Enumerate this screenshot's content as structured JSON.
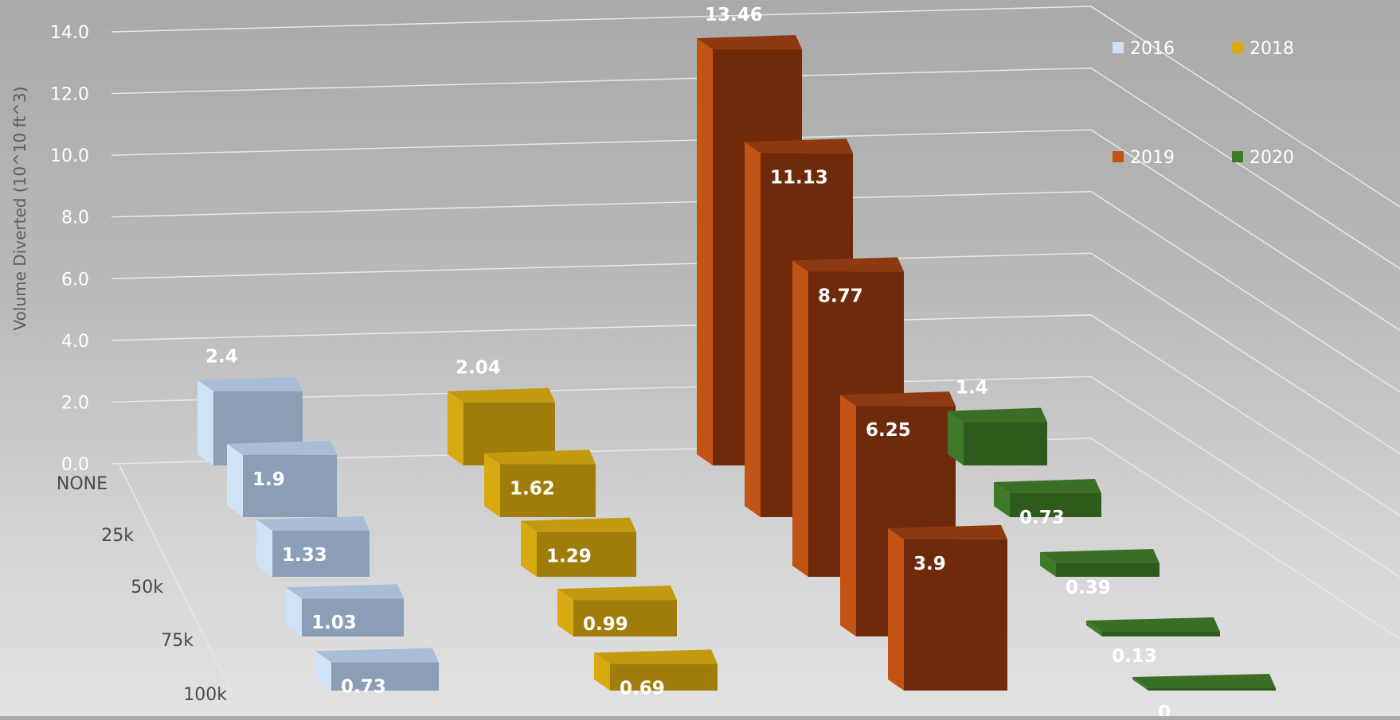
{
  "chart_data": {
    "type": "bar",
    "view": "3d",
    "ylabel": "Volume Diverted (10^10 ft^3)",
    "ylim": [
      0,
      14
    ],
    "yticks": [
      "0.0",
      "2.0",
      "4.0",
      "6.0",
      "8.0",
      "10.0",
      "12.0",
      "14.0"
    ],
    "categories": [
      "NONE",
      "25k",
      "50k",
      "75k",
      "100k"
    ],
    "legend_position": "top-right",
    "grid": true,
    "series": [
      {
        "name": "2016",
        "values": [
          2.4,
          1.9,
          1.33,
          1.03,
          0.73
        ],
        "labels": [
          "2.4",
          "1.9",
          "1.33",
          "1.03",
          "0.73"
        ]
      },
      {
        "name": "2018",
        "values": [
          2.04,
          1.62,
          1.29,
          0.99,
          0.69
        ],
        "labels": [
          "2.04",
          "1.62",
          "1.29",
          "0.99",
          "0.69"
        ]
      },
      {
        "name": "2019",
        "values": [
          13.46,
          11.13,
          8.77,
          6.25,
          3.9
        ],
        "labels": [
          "13.46",
          "11.13",
          "8.77",
          "6.25",
          "3.9"
        ]
      },
      {
        "name": "2020",
        "values": [
          1.4,
          0.73,
          0.39,
          0.13,
          0
        ],
        "labels": [
          "1.4",
          "0.73",
          "0.39",
          "0.13",
          "0"
        ]
      }
    ],
    "colors": {
      "2016": {
        "front": "#8a9fb6",
        "side": "#cfe2f6",
        "top": "#a9bed6"
      },
      "2018": {
        "front": "#a07d0a",
        "side": "#d8aa12",
        "top": "#c19a10"
      },
      "2019": {
        "front": "#6f2a0b",
        "side": "#c25313",
        "top": "#8d3a12"
      },
      "2020": {
        "front": "#2e5a1c",
        "side": "#3f7a28",
        "top": "#3b6e25"
      }
    }
  }
}
